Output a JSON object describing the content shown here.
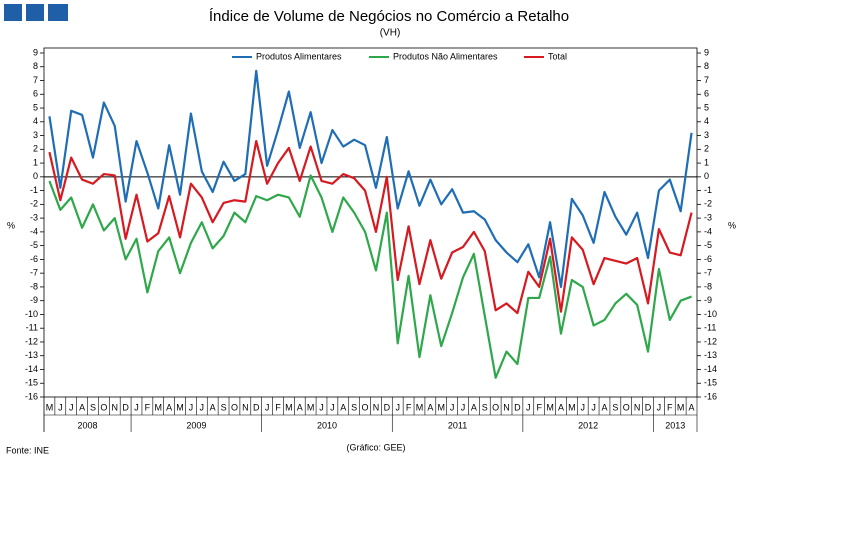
{
  "chart_data": {
    "type": "line",
    "title": "Índice de Volume de Negócios no Comércio a Retalho",
    "subtitle": "(VH)",
    "y_label": "%",
    "source": "Fonte: INE",
    "note": "(Gráfico: GEE)",
    "legend": "top",
    "categories": [
      "M",
      "J",
      "J",
      "A",
      "S",
      "O",
      "N",
      "D",
      "J",
      "F",
      "M",
      "A",
      "M",
      "J",
      "J",
      "A",
      "S",
      "O",
      "N",
      "D",
      "J",
      "F",
      "M",
      "A",
      "M",
      "J",
      "J",
      "A",
      "S",
      "O",
      "N",
      "D",
      "J",
      "F",
      "M",
      "A",
      "M",
      "J",
      "J",
      "A",
      "S",
      "O",
      "N",
      "D",
      "J",
      "F",
      "M",
      "A",
      "M",
      "J",
      "J",
      "A",
      "S",
      "O",
      "N",
      "D",
      "J",
      "F",
      "M",
      "A"
    ],
    "years": [
      "2008",
      "2009",
      "2010",
      "2011",
      "2012",
      "2013"
    ],
    "ylim": [
      -16,
      9
    ],
    "yticks": [
      -16,
      -15,
      -14,
      -13,
      -12,
      -11,
      -10,
      -9,
      -8,
      -7,
      -6,
      -5,
      -4,
      -3,
      -2,
      -1,
      0,
      1,
      2,
      3,
      4,
      5,
      6,
      7,
      8,
      9
    ],
    "series": [
      {
        "name": "Produtos Alimentares",
        "color": "#1f6db5",
        "values": [
          4.4,
          -0.8,
          4.8,
          4.5,
          1.4,
          5.4,
          3.7,
          -1.8,
          2.6,
          0.3,
          -2.3,
          2.3,
          -1.3,
          4.6,
          0.4,
          -1.1,
          1.1,
          -0.3,
          0.2,
          7.7,
          0.8,
          3.4,
          6.2,
          2.1,
          4.7,
          1.0,
          3.4,
          2.2,
          2.7,
          2.3,
          -0.8,
          2.9,
          -2.3,
          0.4,
          -2.1,
          -0.2,
          -2.0,
          -0.9,
          -2.6,
          -2.5,
          -3.1,
          -4.6,
          -5.5,
          -6.2,
          -4.9,
          -7.3,
          -3.3,
          -8.0,
          -1.6,
          -2.8,
          -4.8,
          -1.1,
          -2.9,
          -4.2,
          -2.6,
          -5.9,
          -1.0,
          -0.2,
          -2.5,
          3.2
        ]
      },
      {
        "name": "Produtos Não Alimentares",
        "color": "#2ea84a",
        "values": [
          -0.3,
          -2.4,
          -1.5,
          -3.7,
          -2.0,
          -3.9,
          -3.0,
          -6.0,
          -4.5,
          -8.4,
          -5.4,
          -4.4,
          -7.0,
          -4.8,
          -3.3,
          -5.2,
          -4.3,
          -2.6,
          -3.3,
          -1.4,
          -1.7,
          -1.3,
          -1.5,
          -2.9,
          0.1,
          -1.5,
          -4.0,
          -1.5,
          -2.6,
          -4.0,
          -6.8,
          -2.6,
          -12.1,
          -7.2,
          -13.1,
          -8.6,
          -12.3,
          -9.9,
          -7.3,
          -5.6,
          -10.1,
          -14.6,
          -12.7,
          -13.6,
          -8.8,
          -8.8,
          -5.8,
          -11.4,
          -7.5,
          -8.0,
          -10.8,
          -10.4,
          -9.2,
          -8.5,
          -9.3,
          -12.7,
          -6.7,
          -10.4,
          -9.0,
          -8.7
        ]
      },
      {
        "name": "Total",
        "color": "#d71920",
        "values": [
          1.8,
          -1.7,
          1.4,
          -0.2,
          -0.5,
          0.2,
          0.1,
          -4.5,
          -1.3,
          -4.7,
          -4.1,
          -1.4,
          -4.4,
          -0.5,
          -1.5,
          -3.3,
          -1.9,
          -1.7,
          -1.8,
          2.6,
          -0.5,
          1.0,
          2.1,
          -0.3,
          2.2,
          -0.3,
          -0.5,
          0.2,
          -0.1,
          -1.0,
          -4.0,
          0.0,
          -7.5,
          -3.6,
          -7.8,
          -4.6,
          -7.4,
          -5.5,
          -5.1,
          -4.0,
          -5.4,
          -9.7,
          -9.2,
          -9.9,
          -6.9,
          -8.0,
          -4.5,
          -9.8,
          -4.4,
          -5.3,
          -7.8,
          -5.9,
          -6.1,
          -6.3,
          -5.9,
          -9.2,
          -3.8,
          -5.5,
          -5.7,
          -2.6
        ]
      }
    ]
  }
}
